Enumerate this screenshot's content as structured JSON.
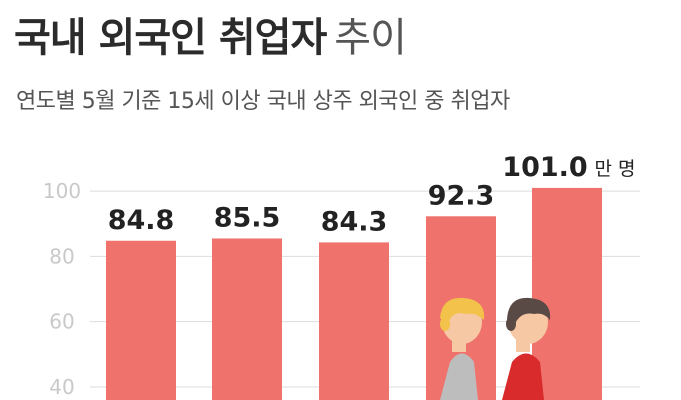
{
  "header": {
    "title_main": "국내 외국인 취업자",
    "title_sub": "추이",
    "subtitle": "연도별 5월 기준 15세 이상 국내 상주 외국인 중 취업자"
  },
  "chart_data": {
    "type": "bar",
    "values": [
      84.8,
      85.5,
      84.3,
      92.3,
      101.0
    ],
    "value_labels": [
      "84.8",
      "85.5",
      "84.3",
      "92.3",
      "101.0"
    ],
    "unit": "만 명",
    "yticks": [
      40,
      60,
      80,
      100
    ],
    "ylim": [
      36,
      112
    ],
    "grid": true,
    "colors": {
      "bar": "#ef726c",
      "grid": "#dddddd",
      "tick": "#c9c9c9"
    }
  },
  "illustration": {
    "description_icon": "two-walking-people-icon",
    "colors": {
      "hair_left": "#f2c24a",
      "shirt_left": "#bdbdbd",
      "hair_right": "#5a4a46",
      "shirt_right": "#d92b2b",
      "skin": "#f6c8a3"
    }
  }
}
